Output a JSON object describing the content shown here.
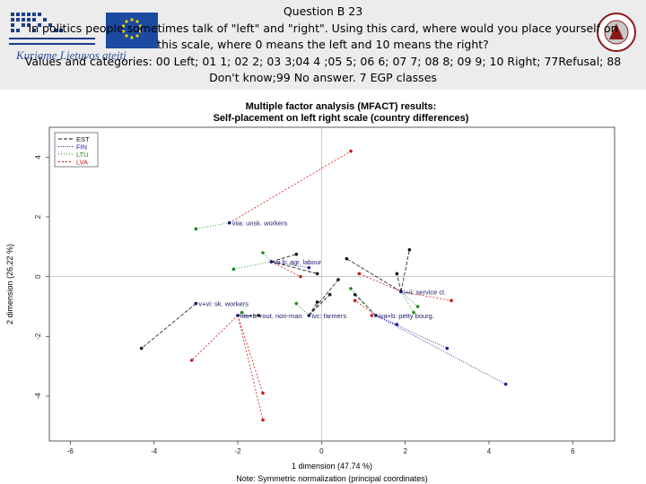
{
  "header": {
    "title": "Question B 23",
    "question_lines": [
      "In politics people sometimes talk of \"left\" and \"right\". Using this card, where would you place yourself on",
      "this scale, where 0 means the left and 10 means the right?",
      "Values and categories: 00 Left; 01 1; 02 2; 03 3;04 4 ;05 5; 06 6; 07 7; 08 8; 09 9; 10 Right; 77Refusal; 88",
      "Don't know;99 No answer. 7 EGP classes"
    ],
    "logo_caption": "Kuriame Lietuvos ateitį"
  },
  "chart_data": {
    "type": "scatter",
    "title": "Multiple factor analysis (MFACT) results:",
    "subtitle": "Self-placement on left right scale (country differences)",
    "xlabel": "1 dimension (47.74 %)",
    "ylabel": "2 dimension (26.22 %)",
    "note": "Note: Symmetric normalization (principal coordinates)",
    "xlim": [
      -6.5,
      7
    ],
    "ylim": [
      -5.5,
      5
    ],
    "xticks": [
      "-6",
      "-4",
      "-2",
      "0",
      "2",
      "4",
      "6"
    ],
    "xtick_values": [
      -6,
      -4,
      -2,
      0,
      2,
      4,
      6
    ],
    "yticks": [
      "-4",
      "-2",
      "0",
      "2",
      "4"
    ],
    "ytick_values": [
      -4,
      -2,
      0,
      2,
      4
    ],
    "legend_position": "top-left",
    "series": [
      {
        "name": "EST",
        "color": "#111111",
        "dash": "4,2"
      },
      {
        "name": "FIN",
        "color": "#1a1aa0",
        "dash": "1,1.5"
      },
      {
        "name": "LTU",
        "color": "#1a8a1a",
        "dash": "1,2"
      },
      {
        "name": "LVA",
        "color": "#cc1a1a",
        "dash": "2,2"
      }
    ],
    "points": [
      {
        "label": "viia: unsk. workers",
        "x": -2.2,
        "y": 1.8
      },
      {
        "label": "vii b: agr. labour",
        "x": -1.2,
        "y": 0.5
      },
      {
        "label": "v+vi: sk. workers",
        "x": -3.0,
        "y": -0.9
      },
      {
        "label": "iiia+b: rout. non-man",
        "x": -2.0,
        "y": -1.3
      },
      {
        "label": "ivc: farmers",
        "x": -0.3,
        "y": -1.3
      },
      {
        "label": "iva+b: petty bourg.",
        "x": 1.3,
        "y": -1.3
      },
      {
        "label": "i+ii: service cl.",
        "x": 1.9,
        "y": -0.5
      }
    ],
    "country_points": {
      "EST": [
        [
          -0.6,
          0.75
        ],
        [
          0.6,
          0.6
        ],
        [
          -0.1,
          0.1
        ],
        [
          0.4,
          -0.1
        ],
        [
          0.2,
          -0.6
        ],
        [
          -0.1,
          -0.85
        ],
        [
          0.8,
          -0.6
        ],
        [
          2.1,
          0.9
        ],
        [
          1.8,
          0.1
        ],
        [
          -4.3,
          -2.4
        ],
        [
          -1.5,
          -1.3
        ]
      ],
      "FIN": [
        [
          -2.2,
          1.8
        ],
        [
          -1.2,
          0.5
        ],
        [
          -3.0,
          -0.9
        ],
        [
          -2.0,
          -1.3
        ],
        [
          -0.3,
          -1.3
        ],
        [
          1.3,
          -1.3
        ],
        [
          1.9,
          -0.5
        ],
        [
          3.0,
          -2.4
        ],
        [
          4.4,
          -3.6
        ],
        [
          1.8,
          -1.6
        ],
        [
          -0.3,
          0.3
        ]
      ],
      "LTU": [
        [
          -3.0,
          1.6
        ],
        [
          -2.1,
          0.25
        ],
        [
          -1.4,
          0.8
        ],
        [
          -0.6,
          -0.9
        ],
        [
          0.7,
          -0.4
        ],
        [
          2.3,
          -1.0
        ],
        [
          2.2,
          -1.2
        ],
        [
          -1.9,
          -1.2
        ]
      ],
      "LVA": [
        [
          0.7,
          4.2
        ],
        [
          -3.1,
          -2.8
        ],
        [
          -1.4,
          -3.9
        ],
        [
          -1.4,
          -4.8
        ],
        [
          0.9,
          0.1
        ],
        [
          3.1,
          -0.8
        ],
        [
          0.8,
          -0.8
        ],
        [
          -0.5,
          0.0
        ],
        [
          1.2,
          -1.3
        ]
      ]
    }
  }
}
